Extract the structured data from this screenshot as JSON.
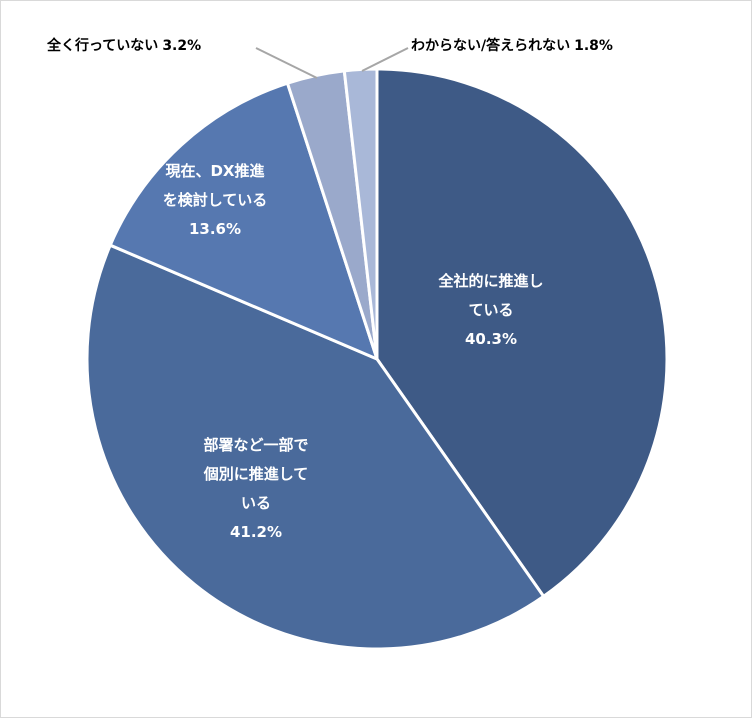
{
  "chart_data": {
    "type": "pie",
    "title": "",
    "slices": [
      {
        "label_lines": [
          "全社的に推進し",
          "ている"
        ],
        "value": 40.3,
        "value_text": "40.3%",
        "color": "#3e5a86"
      },
      {
        "label_lines": [
          "部署など一部で",
          "個別に推進して",
          "いる"
        ],
        "value": 41.2,
        "value_text": "41.2%",
        "color": "#4a6a9b"
      },
      {
        "label_lines": [
          "現在、DX推進",
          "を検討している"
        ],
        "value": 13.6,
        "value_text": "13.6%",
        "color": "#5678b0"
      },
      {
        "label_lines": [
          "全く行っていない"
        ],
        "value": 3.2,
        "value_text": "3.2%",
        "color": "#9aa9cb"
      },
      {
        "label_lines": [
          "わからない/答えられない"
        ],
        "value": 1.8,
        "value_text": "1.8%",
        "color": "#a9b8d8"
      }
    ],
    "start_angle": "12 o'clock",
    "direction": "clockwise",
    "leader_line_color": "#a6a6a6"
  }
}
